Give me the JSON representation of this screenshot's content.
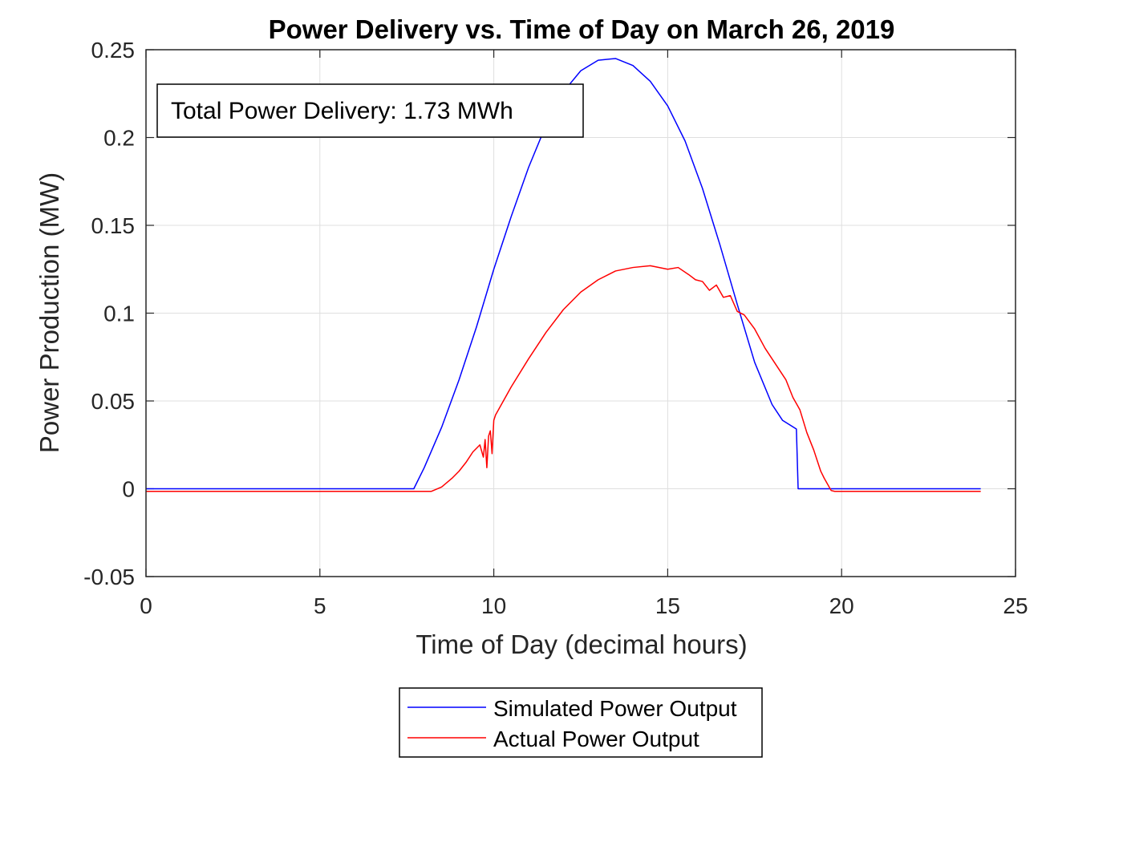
{
  "chart_data": {
    "type": "line",
    "title": "Power Delivery vs. Time of Day on March 26, 2019",
    "xlabel": "Time of Day (decimal hours)",
    "ylabel": "Power Production (MW)",
    "xlim": [
      0,
      25
    ],
    "ylim": [
      -0.05,
      0.25
    ],
    "xticks": [
      0,
      5,
      10,
      15,
      20,
      25
    ],
    "xtick_labels": [
      "0",
      "5",
      "10",
      "15",
      "20",
      "25"
    ],
    "yticks": [
      -0.05,
      0,
      0.05,
      0.1,
      0.15,
      0.2,
      0.25
    ],
    "ytick_labels": [
      "-0.05",
      "0",
      "0.05",
      "0.1",
      "0.15",
      "0.2",
      "0.25"
    ],
    "grid": true,
    "legend_position": "below plot, centered",
    "annotation": "Total Power Delivery: 1.73 MWh",
    "series": [
      {
        "name": "Simulated Power Output",
        "color": "#0000ff",
        "x": [
          0,
          7.7,
          8.0,
          8.5,
          9.0,
          9.5,
          10.0,
          10.5,
          11.0,
          11.5,
          12.0,
          12.5,
          13.0,
          13.5,
          14.0,
          14.5,
          15.0,
          15.5,
          16.0,
          16.5,
          17.0,
          17.5,
          18.0,
          18.3,
          18.7,
          18.75,
          24
        ],
        "y": [
          0,
          0,
          0.012,
          0.035,
          0.062,
          0.092,
          0.125,
          0.155,
          0.183,
          0.207,
          0.226,
          0.238,
          0.244,
          0.245,
          0.241,
          0.232,
          0.218,
          0.198,
          0.171,
          0.139,
          0.105,
          0.072,
          0.048,
          0.039,
          0.034,
          0,
          0
        ]
      },
      {
        "name": "Actual Power Output",
        "color": "#ff0000",
        "x": [
          0,
          8.2,
          8.5,
          8.8,
          9.0,
          9.2,
          9.4,
          9.6,
          9.7,
          9.75,
          9.8,
          9.85,
          9.9,
          9.95,
          10.0,
          10.05,
          10.5,
          11.0,
          11.5,
          12.0,
          12.5,
          13.0,
          13.5,
          14.0,
          14.5,
          15.0,
          15.3,
          15.6,
          15.8,
          16.0,
          16.2,
          16.4,
          16.6,
          16.8,
          17.0,
          17.2,
          17.5,
          17.8,
          18.0,
          18.2,
          18.4,
          18.6,
          18.8,
          19.0,
          19.2,
          19.4,
          19.5,
          19.7,
          19.8,
          24
        ],
        "y": [
          -0.0015,
          -0.0015,
          0.001,
          0.006,
          0.01,
          0.015,
          0.021,
          0.025,
          0.018,
          0.028,
          0.012,
          0.03,
          0.033,
          0.02,
          0.039,
          0.042,
          0.058,
          0.074,
          0.089,
          0.102,
          0.112,
          0.119,
          0.124,
          0.126,
          0.127,
          0.125,
          0.126,
          0.122,
          0.119,
          0.118,
          0.113,
          0.116,
          0.109,
          0.11,
          0.101,
          0.099,
          0.091,
          0.08,
          0.074,
          0.068,
          0.062,
          0.052,
          0.045,
          0.032,
          0.022,
          0.01,
          0.006,
          -0.001,
          -0.0015,
          -0.0015
        ]
      }
    ]
  }
}
